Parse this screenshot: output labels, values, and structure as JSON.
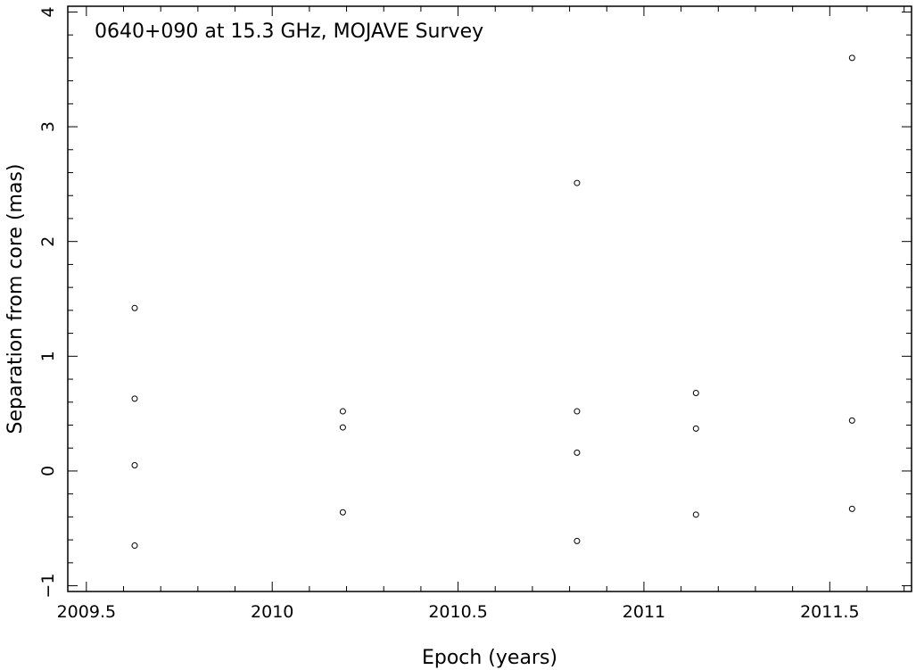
{
  "chart_data": {
    "type": "scatter",
    "title": "0640+090 at 15.3 GHz, MOJAVE Survey",
    "xlabel": "Epoch (years)",
    "ylabel": "Separation from core (mas)",
    "xlim": [
      2009.45,
      2011.72
    ],
    "ylim": [
      -1.05,
      4.05
    ],
    "xticks": [
      "2009.5",
      "2010",
      "2010.5",
      "2011",
      "2011.5"
    ],
    "xtick_values": [
      2009.5,
      2010,
      2010.5,
      2011,
      2011.5
    ],
    "yticks": [
      "−1",
      "0",
      "1",
      "2",
      "3",
      "4"
    ],
    "ytick_values": [
      -1,
      0,
      1,
      2,
      3,
      4
    ],
    "grid": false,
    "points": [
      {
        "x": 2009.63,
        "y": 1.42
      },
      {
        "x": 2009.63,
        "y": 0.63
      },
      {
        "x": 2009.63,
        "y": 0.05
      },
      {
        "x": 2009.63,
        "y": -0.65
      },
      {
        "x": 2010.19,
        "y": 0.52
      },
      {
        "x": 2010.19,
        "y": 0.38
      },
      {
        "x": 2010.19,
        "y": -0.36
      },
      {
        "x": 2010.82,
        "y": 2.51
      },
      {
        "x": 2010.82,
        "y": 0.52
      },
      {
        "x": 2010.82,
        "y": 0.16
      },
      {
        "x": 2010.82,
        "y": -0.61
      },
      {
        "x": 2011.14,
        "y": 0.68
      },
      {
        "x": 2011.14,
        "y": 0.37
      },
      {
        "x": 2011.14,
        "y": -0.38
      },
      {
        "x": 2011.56,
        "y": 3.6
      },
      {
        "x": 2011.56,
        "y": 0.44
      },
      {
        "x": 2011.56,
        "y": -0.33
      }
    ]
  }
}
